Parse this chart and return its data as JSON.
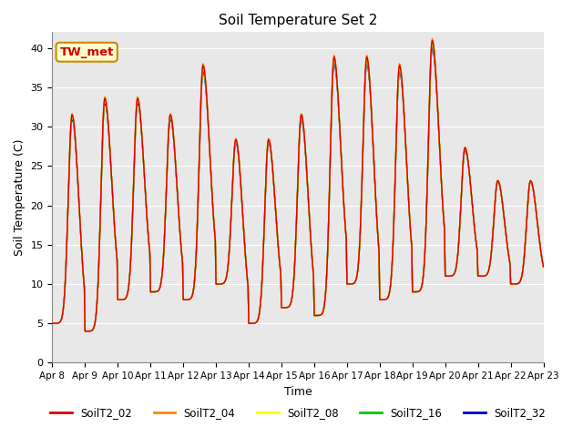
{
  "title": "Soil Temperature Set 2",
  "xlabel": "Time",
  "ylabel": "Soil Temperature (C)",
  "ylim": [
    0,
    42
  ],
  "yticks": [
    0,
    5,
    10,
    15,
    20,
    25,
    30,
    35,
    40
  ],
  "annotation": "TW_met",
  "bg_color": "#e8e8e8",
  "series_colors": {
    "SoilT2_02": "#dd0000",
    "SoilT2_04": "#ff8800",
    "SoilT2_08": "#ffff00",
    "SoilT2_16": "#00cc00",
    "SoilT2_32": "#0000cc"
  },
  "figsize": [
    6.4,
    4.8
  ],
  "dpi": 100,
  "linewidth": 1.0
}
